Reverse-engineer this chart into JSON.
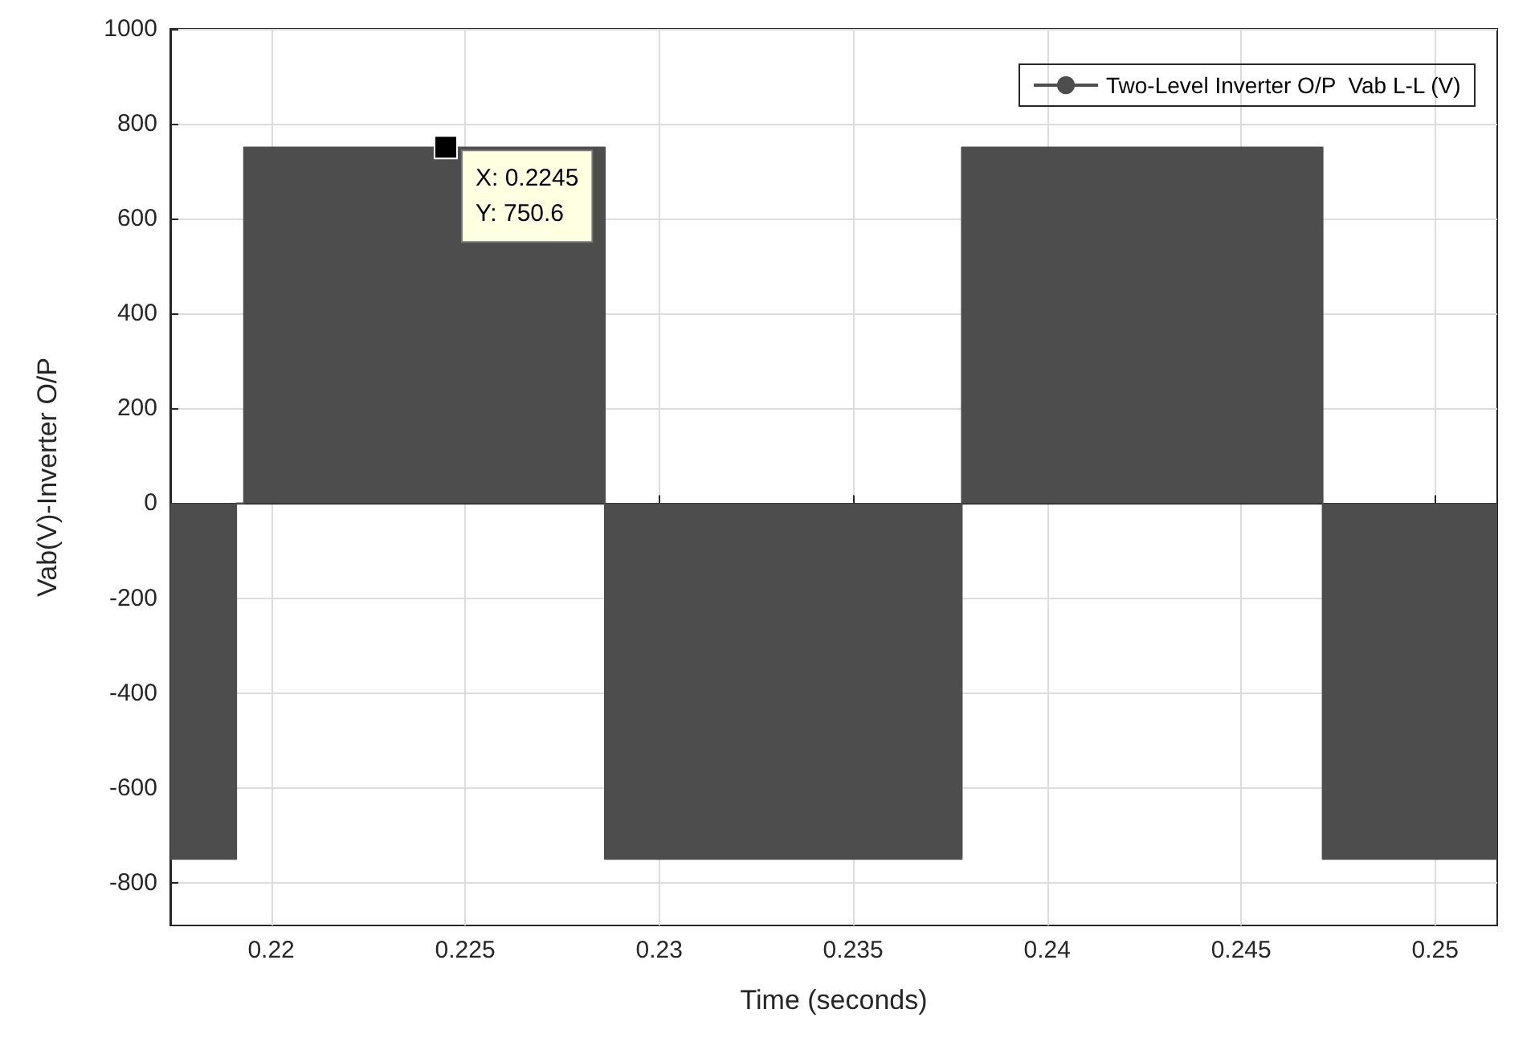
{
  "chart_data": {
    "type": "area",
    "xlabel": "Time (seconds)",
    "ylabel": "Vab(V)-Inverter O/P",
    "xlim": [
      0.2174,
      0.2516
    ],
    "xticks": [
      0.22,
      0.225,
      0.23,
      0.235,
      0.24,
      0.245,
      0.25
    ],
    "ylim": [
      -890,
      1000
    ],
    "yticks": [
      -800,
      -600,
      -400,
      -200,
      0,
      200,
      400,
      600,
      800,
      1000
    ],
    "series": [
      {
        "name": "Two-Level Inverter O/P  Vab L-L (V)",
        "color": "#4d4d4d",
        "x": [
          0.2174,
          0.2191,
          0.2191,
          0.2193,
          0.2193,
          0.2286,
          0.2286,
          0.2378,
          0.2378,
          0.2471,
          0.2471,
          0.2516
        ],
        "values": [
          -750,
          -750,
          0,
          0,
          750,
          750,
          -750,
          -750,
          750,
          750,
          -750,
          -750
        ]
      }
    ],
    "annotations": [
      {
        "text": "X: 0.2245\nY: 750.6",
        "x": 0.2245,
        "y": 750.6
      }
    ],
    "grid": true,
    "legend": "top right"
  }
}
